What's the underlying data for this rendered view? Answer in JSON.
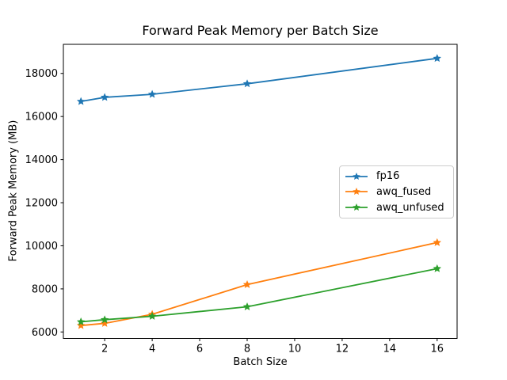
{
  "chart_data": {
    "type": "line",
    "title": "Forward Peak Memory per Batch Size",
    "xlabel": "Batch Size",
    "ylabel": "Forward Peak Memory (MB)",
    "x": [
      1,
      2,
      4,
      8,
      16
    ],
    "series": [
      {
        "name": "fp16",
        "color": "#1f77b4",
        "values": [
          16700,
          16890,
          17030,
          17520,
          18700
        ]
      },
      {
        "name": "awq_fused",
        "color": "#ff7f0e",
        "values": [
          6300,
          6400,
          6820,
          8200,
          10150
        ]
      },
      {
        "name": "awq_unfused",
        "color": "#2ca02c",
        "values": [
          6470,
          6570,
          6730,
          7170,
          8940
        ]
      }
    ],
    "x_ticks": [
      2,
      4,
      6,
      8,
      10,
      12,
      14,
      16
    ],
    "y_ticks": [
      6000,
      8000,
      10000,
      12000,
      14000,
      16000,
      18000
    ],
    "xlim": [
      0.26,
      16.84
    ],
    "ylim": [
      5700,
      19350
    ],
    "grid": false,
    "marker": "star",
    "legend_position": "center right",
    "axis_color": "#000000",
    "background_color": "#ffffff"
  }
}
